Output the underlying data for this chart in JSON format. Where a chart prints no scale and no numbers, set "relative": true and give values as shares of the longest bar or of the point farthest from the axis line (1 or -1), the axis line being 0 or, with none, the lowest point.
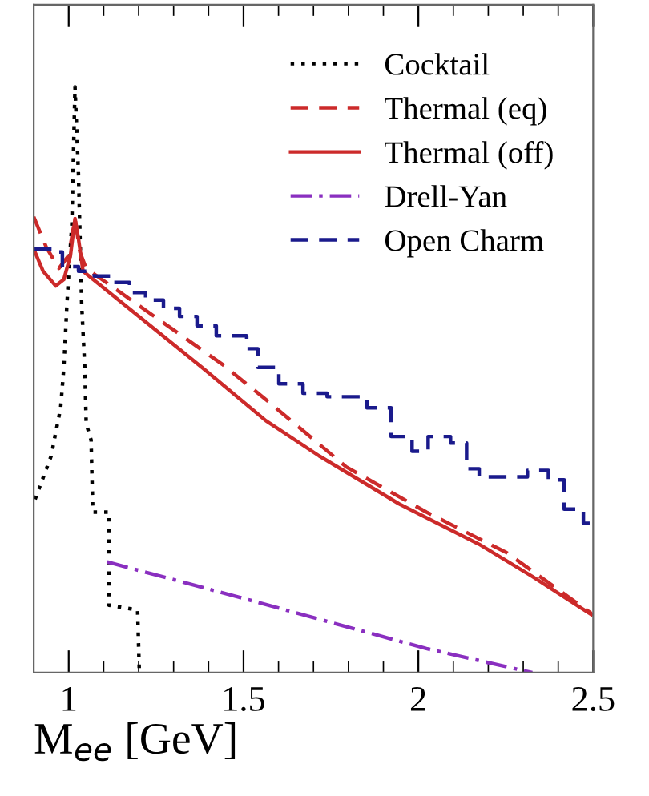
{
  "chart_data": {
    "type": "line",
    "relative": true,
    "xlabel": "M$_{ee}$ [GeV]",
    "xlim": [
      0.9,
      2.5
    ],
    "xticks": [
      1,
      1.5,
      2,
      2.5
    ],
    "grid": false,
    "legend": "top right",
    "tick_labels": "x",
    "series": [
      {
        "name": "Cocktail",
        "color": "#000000",
        "line_style": "dotted",
        "x": [
          0.904,
          0.95,
          0.963,
          0.977,
          0.986,
          0.995,
          1.009,
          1.018,
          1.028,
          1.037,
          1.046,
          1.05,
          1.064,
          1.069,
          1.115,
          1.115,
          1.197,
          1.202
        ],
        "values": [
          0.296,
          0.37,
          0.41,
          0.452,
          0.52,
          0.63,
          0.767,
          1.0,
          0.849,
          0.63,
          0.52,
          0.425,
          0.397,
          0.274,
          0.274,
          0.115,
          0.107,
          0.0
        ]
      },
      {
        "name": "Thermal (eq)",
        "color": "#cc2a2a",
        "line_style": "dashed",
        "x": [
          0.9,
          0.936,
          0.972,
          1.0,
          1.018,
          1.032,
          1.05,
          1.257,
          1.44,
          1.564,
          1.794,
          2.023,
          2.252,
          2.495
        ],
        "values": [
          0.778,
          0.726,
          0.69,
          0.712,
          0.775,
          0.718,
          0.69,
          0.603,
          0.526,
          0.466,
          0.351,
          0.274,
          0.205,
          0.101
        ]
      },
      {
        "name": "Thermal (off)",
        "color": "#cc2a2a",
        "line_style": "solid",
        "x": [
          0.9,
          0.927,
          0.963,
          0.986,
          1.005,
          1.018,
          1.028,
          1.041,
          1.381,
          1.564,
          1.716,
          1.945,
          2.174,
          2.326,
          2.495
        ],
        "values": [
          0.723,
          0.685,
          0.66,
          0.671,
          0.712,
          0.775,
          0.74,
          0.685,
          0.521,
          0.43,
          0.37,
          0.288,
          0.219,
          0.164,
          0.099
        ]
      },
      {
        "name": "Drell-Yan",
        "color": "#8a2fc0",
        "line_style": "dashdot",
        "x": [
          1.11,
          1.486,
          2.023,
          2.326
        ],
        "values": [
          0.189,
          0.129,
          0.041,
          0.0
        ]
      },
      {
        "name": "Open Charm",
        "color": "#1a1a8c",
        "line_style": "dashed",
        "type": "step",
        "x": [
          0.9,
          0.959,
          0.982,
          1.028,
          1.073,
          1.128,
          1.174,
          1.22,
          1.271,
          1.317,
          1.367,
          1.422,
          1.509,
          1.541,
          1.601,
          1.67,
          1.739,
          1.853,
          1.922,
          1.982,
          2.028,
          2.092,
          2.138,
          2.174,
          2.312,
          2.372,
          2.417,
          2.472,
          2.5
        ],
        "values": [
          0.723,
          0.718,
          0.693,
          0.685,
          0.677,
          0.666,
          0.649,
          0.636,
          0.622,
          0.608,
          0.592,
          0.575,
          0.553,
          0.521,
          0.493,
          0.477,
          0.471,
          0.452,
          0.403,
          0.378,
          0.403,
          0.392,
          0.348,
          0.334,
          0.345,
          0.329,
          0.279,
          0.255,
          0.255
        ]
      }
    ]
  }
}
